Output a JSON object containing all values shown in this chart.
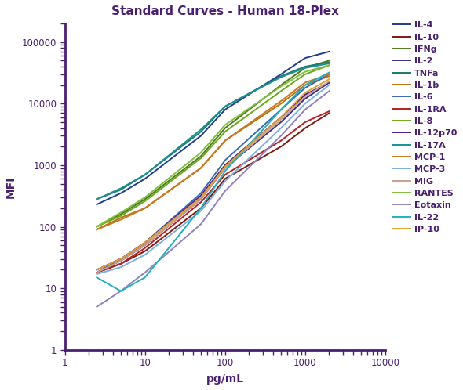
{
  "title": "Standard Curves - Human 18-Plex",
  "xlabel": "pg/mL",
  "ylabel": "MFI",
  "xlim": [
    1,
    10000
  ],
  "ylim": [
    1,
    200000
  ],
  "spine_color": "#4a2070",
  "text_color": "#4a2070",
  "series": [
    {
      "name": "IL-4",
      "color": "#1f3d8c",
      "x": [
        2.5,
        5,
        10,
        50,
        100,
        500,
        1000,
        2000
      ],
      "y": [
        230,
        350,
        600,
        3000,
        8000,
        30000,
        55000,
        70000
      ]
    },
    {
      "name": "IL-10",
      "color": "#7b1a10",
      "x": [
        2.5,
        5,
        10,
        50,
        100,
        500,
        1000,
        2000
      ],
      "y": [
        18,
        25,
        40,
        200,
        600,
        2000,
        4000,
        7000
      ]
    },
    {
      "name": "IFNg",
      "color": "#4d7a1e",
      "x": [
        2.5,
        5,
        10,
        50,
        100,
        500,
        1000,
        2000
      ],
      "y": [
        100,
        160,
        280,
        1400,
        4000,
        20000,
        38000,
        50000
      ]
    },
    {
      "name": "IL-2",
      "color": "#3d2d8c",
      "x": [
        2.5,
        5,
        10,
        50,
        100,
        500,
        1000,
        2000
      ],
      "y": [
        18,
        28,
        50,
        280,
        900,
        5000,
        12000,
        22000
      ]
    },
    {
      "name": "TNFa",
      "color": "#1a7a6e",
      "x": [
        2.5,
        5,
        10,
        50,
        100,
        500,
        1000,
        2000
      ],
      "y": [
        280,
        400,
        700,
        3500,
        9000,
        28000,
        40000,
        47000
      ]
    },
    {
      "name": "IL-1b",
      "color": "#b8730a",
      "x": [
        2.5,
        5,
        10,
        50,
        100,
        500,
        1000,
        2000
      ],
      "y": [
        90,
        140,
        200,
        900,
        2500,
        10000,
        20000,
        28000
      ]
    },
    {
      "name": "IL-6",
      "color": "#3a6ab5",
      "x": [
        2.5,
        5,
        10,
        50,
        100,
        500,
        1000,
        2000
      ],
      "y": [
        18,
        30,
        55,
        350,
        1200,
        8000,
        18000,
        30000
      ]
    },
    {
      "name": "IL-1RA",
      "color": "#b52020",
      "x": [
        2.5,
        5,
        10,
        50,
        100,
        500,
        1000,
        2000
      ],
      "y": [
        18,
        25,
        45,
        250,
        700,
        2500,
        5000,
        7500
      ]
    },
    {
      "name": "IL-8",
      "color": "#6aaa1a",
      "x": [
        2.5,
        5,
        10,
        50,
        100,
        500,
        1000,
        2000
      ],
      "y": [
        100,
        150,
        260,
        1300,
        3500,
        16000,
        30000,
        42000
      ]
    },
    {
      "name": "IL-12p70",
      "color": "#4a1a8c",
      "x": [
        2.5,
        5,
        10,
        50,
        100,
        500,
        1000,
        2000
      ],
      "y": [
        20,
        30,
        55,
        320,
        1000,
        6000,
        14000,
        22000
      ]
    },
    {
      "name": "IL-17A",
      "color": "#1a9090",
      "x": [
        2.5,
        5,
        10,
        50,
        100,
        500,
        1000,
        2000
      ],
      "y": [
        280,
        420,
        700,
        3800,
        9000,
        27000,
        38000,
        45000
      ]
    },
    {
      "name": "MCP-1",
      "color": "#c87820",
      "x": [
        2.5,
        5,
        10,
        50,
        100,
        500,
        1000,
        2000
      ],
      "y": [
        90,
        130,
        200,
        900,
        2500,
        11000,
        22000,
        30000
      ]
    },
    {
      "name": "MCP-3",
      "color": "#7ab0e0",
      "x": [
        2.5,
        5,
        10,
        50,
        100,
        500,
        1000,
        2000
      ],
      "y": [
        17,
        22,
        35,
        180,
        550,
        4000,
        10000,
        20000
      ]
    },
    {
      "name": "MIG",
      "color": "#c8a090",
      "x": [
        2.5,
        5,
        10,
        50,
        100,
        500,
        1000,
        2000
      ],
      "y": [
        18,
        28,
        50,
        280,
        900,
        5500,
        13000,
        23000
      ]
    },
    {
      "name": "RANTES",
      "color": "#80c040",
      "x": [
        2.5,
        5,
        10,
        50,
        100,
        500,
        1000,
        2000
      ],
      "y": [
        100,
        170,
        300,
        1600,
        4500,
        19000,
        33000,
        42000
      ]
    },
    {
      "name": "Eotaxin",
      "color": "#9080c0",
      "x": [
        2.5,
        5,
        10,
        50,
        100,
        500,
        1000,
        2000
      ],
      "y": [
        5,
        9,
        18,
        110,
        380,
        3000,
        8000,
        16000
      ]
    },
    {
      "name": "IL-22",
      "color": "#20b0c0",
      "x": [
        2.5,
        5,
        10,
        50,
        100,
        500,
        1000,
        2000
      ],
      "y": [
        15,
        9,
        15,
        200,
        800,
        8000,
        20000,
        32000
      ]
    },
    {
      "name": "IP-10",
      "color": "#e0a030",
      "x": [
        2.5,
        5,
        10,
        50,
        100,
        500,
        1000,
        2000
      ],
      "y": [
        20,
        30,
        55,
        300,
        950,
        6000,
        15000,
        25000
      ]
    }
  ]
}
